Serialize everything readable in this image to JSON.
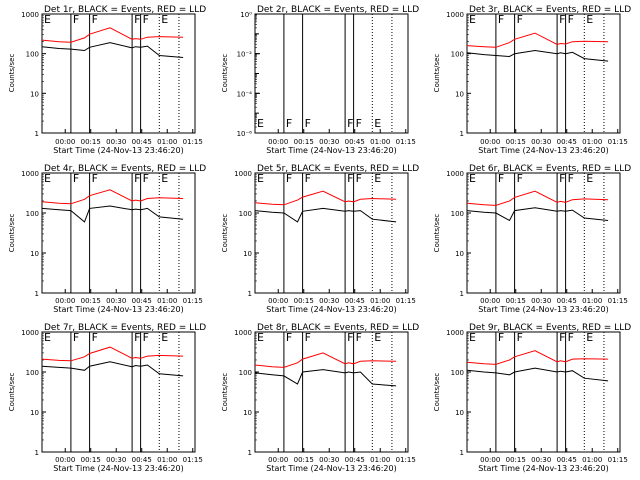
{
  "shared": {
    "ylabel": "Counts/sec",
    "xlabel": "Start Time (24-Nov-13 23:46:20)",
    "x_ticks": [
      "00:00",
      "00:15",
      "00:30",
      "00:45",
      "01:00",
      "01:15"
    ],
    "y_ticks_log": [
      "1",
      "10",
      "100",
      "1000"
    ],
    "y_ticks_det2": [
      "10⁰",
      "10⁻²",
      "10⁻⁴",
      "10⁻⁶"
    ],
    "colors": {
      "events": "#000000",
      "lld": "#ff0000"
    }
  },
  "chart_data": [
    {
      "type": "line",
      "title": "Det 1r, BLACK = Events, RED = LLD",
      "yscale": "log",
      "ylim": [
        1,
        1000
      ],
      "markers": [
        {
          "label": "E",
          "x": 0
        },
        {
          "label": "F",
          "x": 17
        },
        {
          "label": "F",
          "x": 28
        },
        {
          "label": "F",
          "x": 53
        },
        {
          "label": "F",
          "x": 58
        },
        {
          "label": "E",
          "x": 69
        }
      ],
      "series": [
        {
          "name": "Events",
          "x": [
            0,
            10,
            17,
            25,
            28,
            40,
            53,
            55,
            58,
            62,
            69,
            83
          ],
          "values": [
            150,
            135,
            130,
            120,
            145,
            190,
            140,
            150,
            145,
            155,
            90,
            80
          ]
        },
        {
          "name": "LLD",
          "x": [
            0,
            10,
            17,
            25,
            28,
            40,
            53,
            55,
            58,
            62,
            69,
            83
          ],
          "values": [
            220,
            200,
            195,
            250,
            310,
            450,
            230,
            240,
            230,
            260,
            270,
            260
          ]
        }
      ]
    },
    {
      "type": "line",
      "title": "Det 2r, BLACK = Events, RED = LLD",
      "yscale": "log",
      "ylim": [
        1e-06,
        1
      ],
      "markers": [
        {
          "label": "E",
          "x": 0
        },
        {
          "label": "F",
          "x": 17
        },
        {
          "label": "F",
          "x": 28
        },
        {
          "label": "F",
          "x": 53
        },
        {
          "label": "F",
          "x": 58
        },
        {
          "label": "E",
          "x": 69
        }
      ],
      "series": []
    },
    {
      "type": "line",
      "title": "Det 3r, BLACK = Events, RED = LLD",
      "yscale": "log",
      "ylim": [
        1,
        1000
      ],
      "markers": [
        {
          "label": "E",
          "x": 0
        },
        {
          "label": "F",
          "x": 17
        },
        {
          "label": "F",
          "x": 28
        },
        {
          "label": "F",
          "x": 53
        },
        {
          "label": "F",
          "x": 58
        },
        {
          "label": "E",
          "x": 69
        }
      ],
      "series": [
        {
          "name": "Events",
          "x": [
            0,
            10,
            17,
            25,
            28,
            40,
            53,
            55,
            58,
            62,
            69,
            83
          ],
          "values": [
            105,
            95,
            90,
            85,
            100,
            120,
            100,
            105,
            100,
            108,
            75,
            65
          ]
        },
        {
          "name": "LLD",
          "x": [
            0,
            10,
            17,
            25,
            28,
            40,
            53,
            55,
            58,
            62,
            69,
            83
          ],
          "values": [
            160,
            150,
            145,
            190,
            230,
            330,
            170,
            180,
            175,
            200,
            205,
            200
          ]
        }
      ]
    },
    {
      "type": "line",
      "title": "Det 4r, BLACK = Events, RED = LLD",
      "yscale": "log",
      "ylim": [
        1,
        1000
      ],
      "markers": [
        {
          "label": "E",
          "x": 0
        },
        {
          "label": "F",
          "x": 17
        },
        {
          "label": "F",
          "x": 28
        },
        {
          "label": "F",
          "x": 53
        },
        {
          "label": "F",
          "x": 58
        },
        {
          "label": "E",
          "x": 69
        }
      ],
      "series": [
        {
          "name": "Events",
          "x": [
            0,
            10,
            17,
            25,
            28,
            40,
            53,
            55,
            58,
            62,
            69,
            83
          ],
          "values": [
            130,
            120,
            115,
            60,
            130,
            150,
            120,
            125,
            120,
            130,
            80,
            70
          ]
        },
        {
          "name": "LLD",
          "x": [
            0,
            10,
            17,
            25,
            28,
            40,
            53,
            55,
            58,
            62,
            69,
            83
          ],
          "values": [
            190,
            175,
            170,
            220,
            270,
            380,
            200,
            210,
            200,
            230,
            240,
            230
          ]
        }
      ]
    },
    {
      "type": "line",
      "title": "Det 5r, BLACK = Events, RED = LLD",
      "yscale": "log",
      "ylim": [
        1,
        1000
      ],
      "markers": [
        {
          "label": "E",
          "x": 0
        },
        {
          "label": "F",
          "x": 17
        },
        {
          "label": "F",
          "x": 28
        },
        {
          "label": "F",
          "x": 53
        },
        {
          "label": "F",
          "x": 58
        },
        {
          "label": "E",
          "x": 69
        }
      ],
      "series": [
        {
          "name": "Events",
          "x": [
            0,
            10,
            17,
            25,
            28,
            40,
            53,
            55,
            58,
            62,
            69,
            83
          ],
          "values": [
            115,
            105,
            100,
            60,
            110,
            130,
            110,
            115,
            110,
            115,
            70,
            60
          ]
        },
        {
          "name": "LLD",
          "x": [
            0,
            10,
            17,
            25,
            28,
            40,
            53,
            55,
            58,
            62,
            69,
            83
          ],
          "values": [
            180,
            165,
            160,
            210,
            250,
            350,
            190,
            200,
            190,
            220,
            230,
            220
          ]
        }
      ]
    },
    {
      "type": "line",
      "title": "Det 6r, BLACK = Events, RED = LLD",
      "yscale": "log",
      "ylim": [
        1,
        1000
      ],
      "markers": [
        {
          "label": "E",
          "x": 0
        },
        {
          "label": "F",
          "x": 17
        },
        {
          "label": "F",
          "x": 28
        },
        {
          "label": "F",
          "x": 53
        },
        {
          "label": "F",
          "x": 58
        },
        {
          "label": "E",
          "x": 69
        }
      ],
      "series": [
        {
          "name": "Events",
          "x": [
            0,
            10,
            17,
            25,
            28,
            40,
            53,
            55,
            58,
            62,
            69,
            83
          ],
          "values": [
            115,
            105,
            100,
            65,
            115,
            135,
            110,
            115,
            110,
            118,
            75,
            65
          ]
        },
        {
          "name": "LLD",
          "x": [
            0,
            10,
            17,
            25,
            28,
            40,
            53,
            55,
            58,
            62,
            69,
            83
          ],
          "values": [
            175,
            160,
            155,
            200,
            245,
            350,
            185,
            195,
            185,
            215,
            225,
            215
          ]
        }
      ]
    },
    {
      "type": "line",
      "title": "Det 7r, BLACK = Events, RED = LLD",
      "yscale": "log",
      "ylim": [
        1,
        1000
      ],
      "markers": [
        {
          "label": "E",
          "x": 0
        },
        {
          "label": "F",
          "x": 17
        },
        {
          "label": "F",
          "x": 28
        },
        {
          "label": "F",
          "x": 53
        },
        {
          "label": "F",
          "x": 58
        },
        {
          "label": "E",
          "x": 69
        }
      ],
      "series": [
        {
          "name": "Events",
          "x": [
            0,
            10,
            17,
            25,
            28,
            40,
            53,
            55,
            58,
            62,
            69,
            83
          ],
          "values": [
            140,
            130,
            125,
            110,
            140,
            180,
            135,
            145,
            140,
            150,
            90,
            80
          ]
        },
        {
          "name": "LLD",
          "x": [
            0,
            10,
            17,
            25,
            28,
            40,
            53,
            55,
            58,
            62,
            69,
            83
          ],
          "values": [
            210,
            195,
            190,
            240,
            290,
            420,
            220,
            230,
            220,
            250,
            260,
            250
          ]
        }
      ]
    },
    {
      "type": "line",
      "title": "Det 8r, BLACK = Events, RED = LLD",
      "yscale": "log",
      "ylim": [
        1,
        1000
      ],
      "markers": [
        {
          "label": "E",
          "x": 0
        },
        {
          "label": "F",
          "x": 17
        },
        {
          "label": "F",
          "x": 28
        },
        {
          "label": "F",
          "x": 53
        },
        {
          "label": "F",
          "x": 58
        },
        {
          "label": "E",
          "x": 69
        }
      ],
      "series": [
        {
          "name": "Events",
          "x": [
            0,
            10,
            17,
            25,
            28,
            40,
            53,
            55,
            58,
            62,
            69,
            83
          ],
          "values": [
            95,
            85,
            80,
            50,
            100,
            115,
            95,
            100,
            95,
            100,
            50,
            45
          ]
        },
        {
          "name": "LLD",
          "x": [
            0,
            10,
            17,
            25,
            28,
            40,
            53,
            55,
            58,
            62,
            69,
            83
          ],
          "values": [
            150,
            135,
            130,
            170,
            210,
            300,
            160,
            170,
            160,
            185,
            190,
            185
          ]
        }
      ]
    },
    {
      "type": "line",
      "title": "Det 9r, BLACK = Events, RED = LLD",
      "yscale": "log",
      "ylim": [
        1,
        1000
      ],
      "markers": [
        {
          "label": "E",
          "x": 0
        },
        {
          "label": "F",
          "x": 17
        },
        {
          "label": "F",
          "x": 28
        },
        {
          "label": "F",
          "x": 53
        },
        {
          "label": "F",
          "x": 58
        },
        {
          "label": "E",
          "x": 69
        }
      ],
      "series": [
        {
          "name": "Events",
          "x": [
            0,
            10,
            17,
            25,
            28,
            40,
            53,
            55,
            58,
            62,
            69,
            83
          ],
          "values": [
            110,
            100,
            95,
            85,
            100,
            125,
            100,
            105,
            100,
            108,
            70,
            60
          ]
        },
        {
          "name": "LLD",
          "x": [
            0,
            10,
            17,
            25,
            28,
            40,
            53,
            55,
            58,
            62,
            69,
            83
          ],
          "values": [
            175,
            160,
            155,
            200,
            240,
            340,
            180,
            190,
            180,
            210,
            215,
            210
          ]
        }
      ]
    }
  ]
}
